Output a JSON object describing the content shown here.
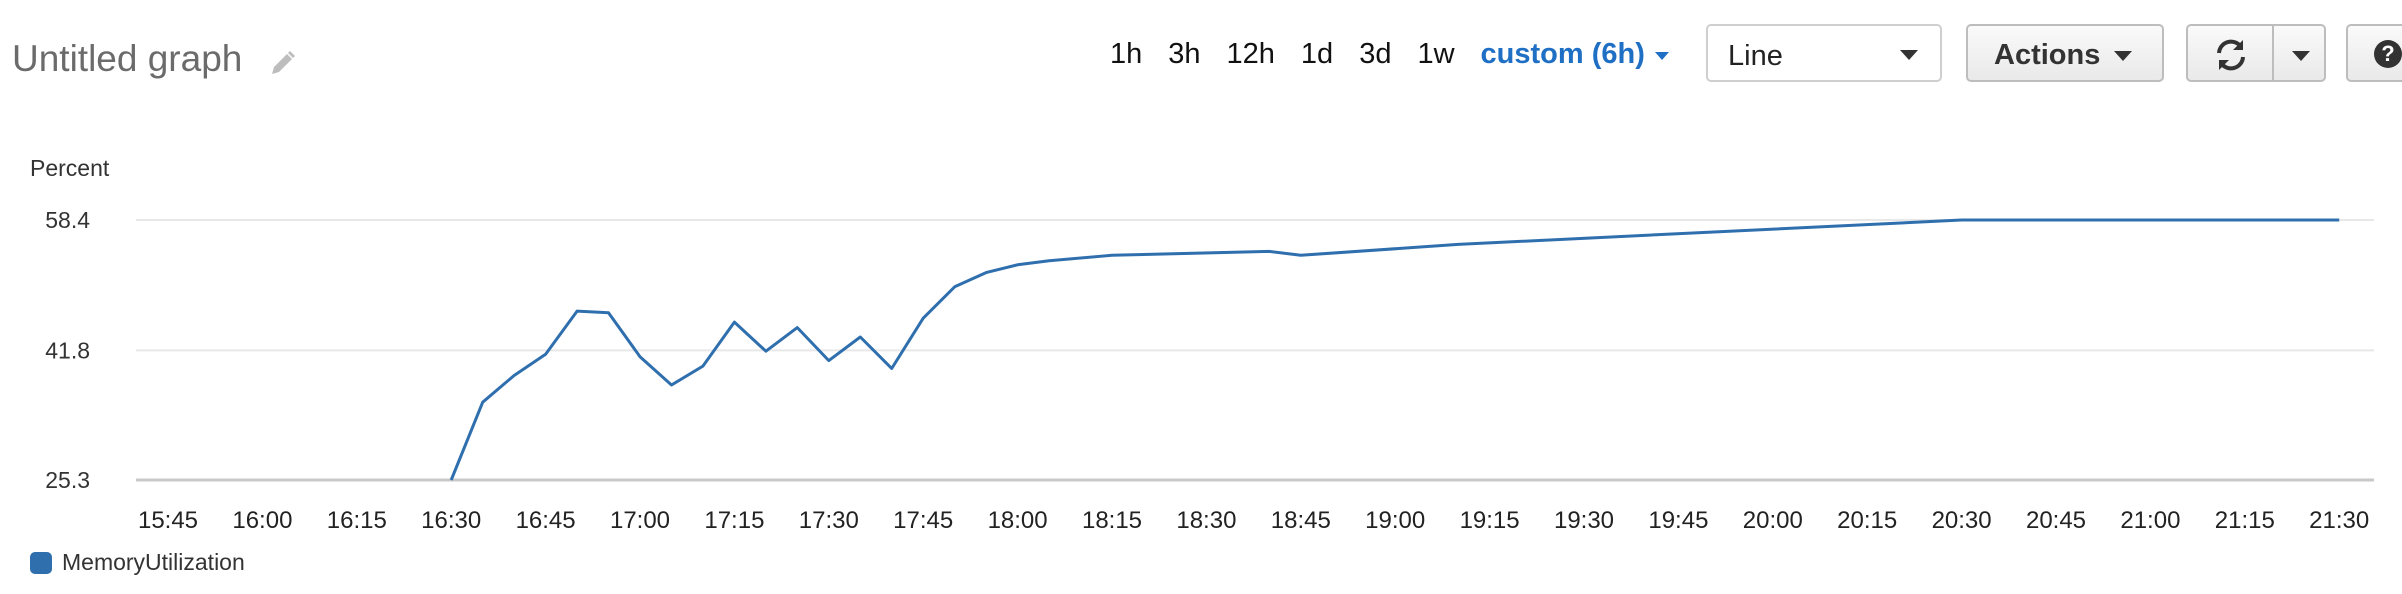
{
  "header": {
    "title": "Untitled graph",
    "ranges": [
      "1h",
      "3h",
      "12h",
      "1d",
      "3d",
      "1w"
    ],
    "active_range": "custom (6h)",
    "view_select": "Line",
    "actions_label": "Actions",
    "help_label": "?"
  },
  "colors": {
    "accent": "#1f6fc5",
    "series": "#2f6fae",
    "grid": "#e8e8e8"
  },
  "chart_data": {
    "type": "line",
    "ylabel": "Percent",
    "yticks": [
      25.3,
      41.8,
      58.4
    ],
    "ylim": [
      25.3,
      58.4
    ],
    "xticks": [
      "15:45",
      "16:00",
      "16:15",
      "16:30",
      "16:45",
      "17:00",
      "17:15",
      "17:30",
      "17:45",
      "18:00",
      "18:15",
      "18:30",
      "18:45",
      "19:00",
      "19:15",
      "19:30",
      "19:45",
      "20:00",
      "20:15",
      "20:30",
      "20:45",
      "21:00",
      "21:15",
      "21:30"
    ],
    "grid": true,
    "legend_position": "bottom-left",
    "series": [
      {
        "name": "MemoryUtilization",
        "x": [
          "16:30",
          "16:35",
          "16:40",
          "16:45",
          "16:50",
          "16:55",
          "17:00",
          "17:05",
          "17:10",
          "17:15",
          "17:20",
          "17:25",
          "17:30",
          "17:35",
          "17:40",
          "17:45",
          "17:50",
          "17:55",
          "18:00",
          "18:05",
          "18:15",
          "18:40",
          "18:45",
          "19:10",
          "20:30",
          "21:30"
        ],
        "values": [
          25.3,
          35.2,
          38.6,
          41.3,
          46.8,
          46.6,
          41.0,
          37.4,
          39.8,
          45.4,
          41.7,
          44.7,
          40.5,
          43.5,
          39.5,
          45.9,
          49.9,
          51.7,
          52.7,
          53.2,
          53.9,
          54.4,
          53.9,
          55.3,
          58.4,
          58.4
        ]
      }
    ]
  }
}
